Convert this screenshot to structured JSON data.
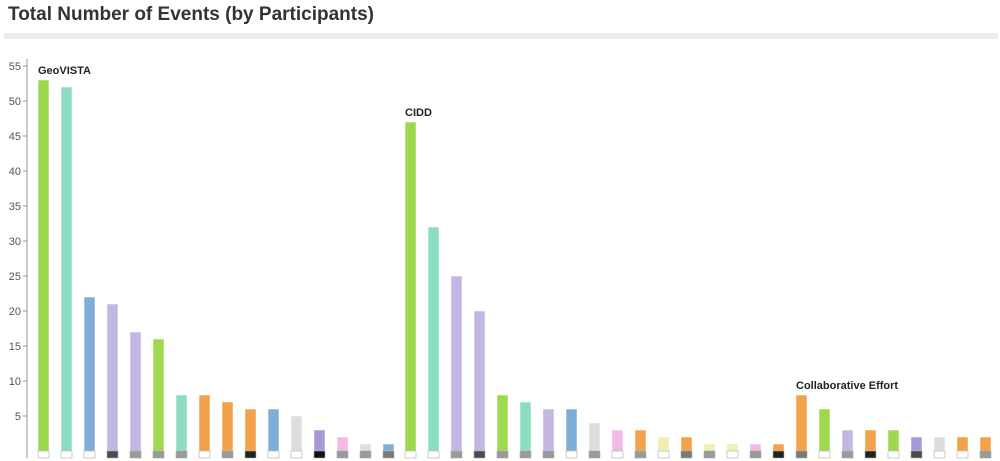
{
  "page": {
    "title": "Total Number of Events (by Participants)"
  },
  "chart_data": {
    "type": "bar",
    "title": "Total Number of Events (by Participants)",
    "xlabel": "",
    "ylabel": "",
    "ylim": [
      0,
      56
    ],
    "yticks": [
      5,
      10,
      15,
      20,
      25,
      30,
      35,
      40,
      45,
      50,
      55
    ],
    "grid": false,
    "legend": "none",
    "colors": {
      "green": "#9ed84f",
      "teal": "#8cdcbf",
      "blue": "#7eaed6",
      "lavender": "#c3b6e2",
      "orange": "#f1a24a",
      "light_gray": "#dddddd",
      "purple": "#a898d6",
      "pink": "#f2b8e6",
      "pale_yellow": "#f1eeb0",
      "axis": "#999999"
    },
    "groups": [
      {
        "label": "GeoVISTA",
        "bars": [
          {
            "value": 53,
            "color": "#9ed84f",
            "base": "#ffffff"
          },
          {
            "value": 52,
            "color": "#8cdcbf",
            "base": "#ffffff"
          },
          {
            "value": 22,
            "color": "#7eaed6",
            "base": "#ffffff"
          },
          {
            "value": 21,
            "color": "#c3b6e2",
            "base": "#4a4a4a"
          },
          {
            "value": 17,
            "color": "#c3b6e2",
            "base": "#9a9a9a"
          },
          {
            "value": 16,
            "color": "#9ed84f",
            "base": "#9a9a9a"
          },
          {
            "value": 8,
            "color": "#8cdcbf",
            "base": "#9a9a9a"
          },
          {
            "value": 8,
            "color": "#f1a24a",
            "base": "#ffffff"
          },
          {
            "value": 7,
            "color": "#f1a24a",
            "base": "#9a9a9a"
          },
          {
            "value": 6,
            "color": "#f1a24a",
            "base": "#222222"
          },
          {
            "value": 6,
            "color": "#7eaed6",
            "base": "#ffffff"
          },
          {
            "value": 5,
            "color": "#dddddd",
            "base": "#ffffff"
          },
          {
            "value": 3,
            "color": "#a898d6",
            "base": "#111111"
          },
          {
            "value": 2,
            "color": "#f2b8e6",
            "base": "#9a9a9a"
          },
          {
            "value": 1,
            "color": "#dddddd",
            "base": "#9a9a9a"
          },
          {
            "value": 1,
            "color": "#7eaed6",
            "base": "#7a7a7a"
          }
        ]
      },
      {
        "label": "CIDD",
        "bars": [
          {
            "value": 47,
            "color": "#9ed84f",
            "base": "#ffffff"
          },
          {
            "value": 32,
            "color": "#8cdcbf",
            "base": "#ffffff"
          },
          {
            "value": 25,
            "color": "#c3b6e2",
            "base": "#9a9a9a"
          },
          {
            "value": 20,
            "color": "#c3b6e2",
            "base": "#4a4a4a"
          },
          {
            "value": 8,
            "color": "#9ed84f",
            "base": "#9a9a9a"
          },
          {
            "value": 7,
            "color": "#8cdcbf",
            "base": "#9a9a9a"
          },
          {
            "value": 6,
            "color": "#c3b6e2",
            "base": "#9a9a9a"
          },
          {
            "value": 6,
            "color": "#7eaed6",
            "base": "#ffffff"
          },
          {
            "value": 4,
            "color": "#dddddd",
            "base": "#9a9a9a"
          },
          {
            "value": 3,
            "color": "#f2b8e6",
            "base": "#ffffff"
          },
          {
            "value": 3,
            "color": "#f1a24a",
            "base": "#9a9a9a"
          },
          {
            "value": 2,
            "color": "#f1eeb0",
            "base": "#ffffff"
          },
          {
            "value": 2,
            "color": "#f1a24a",
            "base": "#7a7a7a"
          },
          {
            "value": 1,
            "color": "#f1eeb0",
            "base": "#9a9a9a"
          },
          {
            "value": 1,
            "color": "#f1eeb0",
            "base": "#ffffff"
          },
          {
            "value": 1,
            "color": "#f2b8e6",
            "base": "#9a9a9a"
          },
          {
            "value": 1,
            "color": "#f1a24a",
            "base": "#222222"
          }
        ]
      },
      {
        "label": "Collaborative Effort",
        "bars": [
          {
            "value": 8,
            "color": "#f1a24a",
            "base": "#7a7a7a"
          },
          {
            "value": 6,
            "color": "#9ed84f",
            "base": "#ffffff"
          },
          {
            "value": 3,
            "color": "#c3b6e2",
            "base": "#9a9a9a"
          },
          {
            "value": 3,
            "color": "#f1a24a",
            "base": "#222222"
          },
          {
            "value": 3,
            "color": "#9ed84f",
            "base": "#ffffff"
          },
          {
            "value": 2,
            "color": "#a898d6",
            "base": "#4a4a4a"
          },
          {
            "value": 2,
            "color": "#dddddd",
            "base": "#ffffff"
          },
          {
            "value": 2,
            "color": "#f1a24a",
            "base": "#ffffff"
          },
          {
            "value": 2,
            "color": "#f1a24a",
            "base": "#9a9a9a"
          }
        ]
      }
    ]
  }
}
